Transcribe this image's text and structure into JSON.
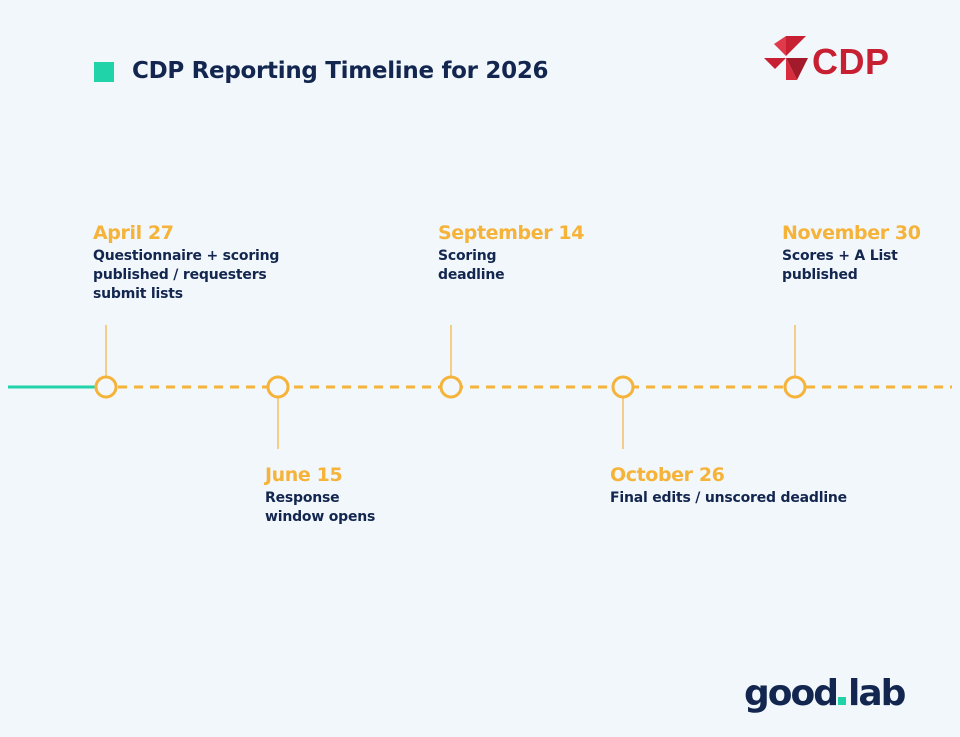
{
  "title": "CDP Reporting Timeline for 2026",
  "brand": {
    "cdp_text": "CDP",
    "goodlab_part1": "good",
    "goodlab_part2": "lab"
  },
  "colors": {
    "accent_teal": "#20d3a8",
    "date_orange": "#f5b33a",
    "text_navy": "#13264f",
    "cdp_red": "#c72033",
    "background": "#f2f7fc"
  },
  "milestones": [
    {
      "date": "April 27",
      "lines": [
        "Questionnaire + scoring",
        "published / requesters",
        "submit lists"
      ],
      "side": "above"
    },
    {
      "date": "June 15",
      "lines": [
        "Response",
        "window opens"
      ],
      "side": "below"
    },
    {
      "date": "September 14",
      "lines": [
        "Scoring",
        "deadline"
      ],
      "side": "above"
    },
    {
      "date": "October 26",
      "lines": [
        "Final edits / unscored deadline"
      ],
      "side": "below"
    },
    {
      "date": "November 30",
      "lines": [
        "Scores + A List",
        "published"
      ],
      "side": "above"
    }
  ]
}
